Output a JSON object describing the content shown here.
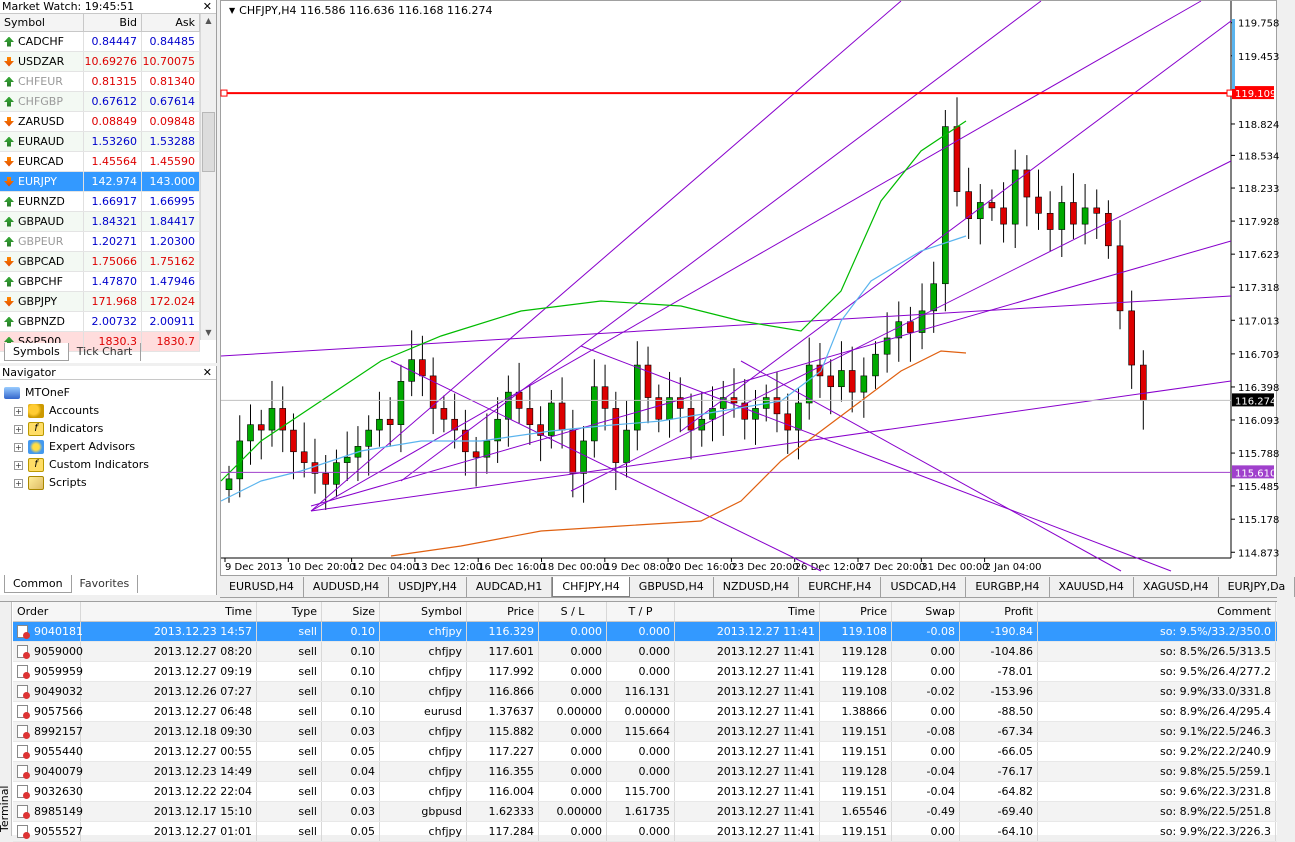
{
  "market_watch": {
    "title": "Market Watch: 19:45:51",
    "columns": [
      "Symbol",
      "Bid",
      "Ask"
    ],
    "rows": [
      {
        "symbol": "CADCHF",
        "bid": "0.84447",
        "ask": "0.84485",
        "dir": "up",
        "color": "#0000cc"
      },
      {
        "symbol": "USDZAR",
        "bid": "10.69276",
        "ask": "10.70075",
        "dir": "down",
        "color": "#dd0000"
      },
      {
        "symbol": "CHFEUR",
        "bid": "0.81315",
        "ask": "0.81340",
        "dir": "up",
        "color": "#dd0000",
        "grey": true
      },
      {
        "symbol": "CHFGBP",
        "bid": "0.67612",
        "ask": "0.67614",
        "dir": "up",
        "color": "#0000cc",
        "grey": true
      },
      {
        "symbol": "ZARUSD",
        "bid": "0.08849",
        "ask": "0.09848",
        "dir": "down",
        "color": "#dd0000"
      },
      {
        "symbol": "EURAUD",
        "bid": "1.53260",
        "ask": "1.53288",
        "dir": "up",
        "color": "#0000cc"
      },
      {
        "symbol": "EURCAD",
        "bid": "1.45564",
        "ask": "1.45590",
        "dir": "down",
        "color": "#dd0000"
      },
      {
        "symbol": "EURJPY",
        "bid": "142.974",
        "ask": "143.000",
        "dir": "down",
        "color": "#ffffff",
        "selected": true
      },
      {
        "symbol": "EURNZD",
        "bid": "1.66917",
        "ask": "1.66995",
        "dir": "up",
        "color": "#0000cc"
      },
      {
        "symbol": "GBPAUD",
        "bid": "1.84321",
        "ask": "1.84417",
        "dir": "up",
        "color": "#0000cc"
      },
      {
        "symbol": "GBPEUR",
        "bid": "1.20271",
        "ask": "1.20300",
        "dir": "up",
        "color": "#0000cc",
        "grey": true
      },
      {
        "symbol": "GBPCAD",
        "bid": "1.75066",
        "ask": "1.75162",
        "dir": "down",
        "color": "#dd0000"
      },
      {
        "symbol": "GBPCHF",
        "bid": "1.47870",
        "ask": "1.47946",
        "dir": "up",
        "color": "#0000cc"
      },
      {
        "symbol": "GBPJPY",
        "bid": "171.968",
        "ask": "172.024",
        "dir": "down",
        "color": "#dd0000"
      },
      {
        "symbol": "GBPNZD",
        "bid": "2.00732",
        "ask": "2.00911",
        "dir": "up",
        "color": "#0000cc"
      },
      {
        "symbol": "S&P500",
        "bid": "1830.3",
        "ask": "1830.7",
        "dir": "up",
        "color": "#dd0000"
      }
    ],
    "tabs": [
      "Symbols",
      "Tick Chart"
    ]
  },
  "navigator": {
    "title": "Navigator",
    "root": "MTOneF",
    "items": [
      "Accounts",
      "Indicators",
      "Expert Advisors",
      "Custom Indicators",
      "Scripts"
    ],
    "tabs": [
      "Common",
      "Favorites"
    ]
  },
  "chart": {
    "header": "CHFJPY,H4  116.586 116.636 116.168 116.274",
    "price_labels": [
      "119.758",
      "119.453",
      "118.824",
      "118.534",
      "118.233",
      "117.928",
      "117.623",
      "117.318",
      "117.013",
      "116.703",
      "116.398",
      "116.093",
      "115.788",
      "115.485",
      "115.178",
      "114.873"
    ],
    "hline_red": "119.109",
    "hline_current": "116.274",
    "hline_purple": "115.610",
    "time_labels": [
      "9 Dec 2013",
      "10 Dec 20:00",
      "12 Dec 04:00",
      "13 Dec 12:00",
      "16 Dec 16:00",
      "18 Dec 00:00",
      "19 Dec 08:00",
      "20 Dec 16:00",
      "23 Dec 20:00",
      "26 Dec 12:00",
      "27 Dec 20:00",
      "31 Dec 00:00",
      "2 Jan 04:00"
    ],
    "colors": {
      "bull": "#00aa00",
      "bear": "#dd0000",
      "trend": "#8800cc",
      "ma_green": "#00bb00",
      "ma_blue": "#5ab4ee",
      "ma_orange": "#e06010",
      "red_line": "#ff0000"
    }
  },
  "chart_tabs": [
    "EURUSD,H4",
    "AUDUSD,H4",
    "USDJPY,H4",
    "AUDCAD,H1",
    "CHFJPY,H4",
    "GBPUSD,H4",
    "NZDUSD,H4",
    "EURCHF,H4",
    "USDCAD,H4",
    "EURGBP,H4",
    "XAUUSD,H4",
    "XAGUSD,H4",
    "EURJPY,Da"
  ],
  "terminal": {
    "side_label": "Terminal",
    "columns": [
      "Order",
      "Time",
      "Type",
      "Size",
      "Symbol",
      "Price",
      "S / L",
      "T / P",
      "Time",
      "Price",
      "Swap",
      "Profit",
      "Comment"
    ],
    "rows": [
      [
        "9040181",
        "2013.12.23 14:57",
        "sell",
        "0.10",
        "chfjpy",
        "116.329",
        "0.000",
        "0.000",
        "2013.12.27 11:41",
        "119.108",
        "-0.08",
        "-190.84",
        "so: 9.5%/33.2/350.0"
      ],
      [
        "9059000",
        "2013.12.27 08:20",
        "sell",
        "0.10",
        "chfjpy",
        "117.601",
        "0.000",
        "0.000",
        "2013.12.27 11:41",
        "119.128",
        "0.00",
        "-104.86",
        "so: 8.5%/26.5/313.5"
      ],
      [
        "9059959",
        "2013.12.27 09:19",
        "sell",
        "0.10",
        "chfjpy",
        "117.992",
        "0.000",
        "0.000",
        "2013.12.27 11:41",
        "119.128",
        "0.00",
        "-78.01",
        "so: 9.5%/26.4/277.2"
      ],
      [
        "9049032",
        "2013.12.26 07:27",
        "sell",
        "0.10",
        "chfjpy",
        "116.866",
        "0.000",
        "116.131",
        "2013.12.27 11:41",
        "119.108",
        "-0.02",
        "-153.96",
        "so: 9.9%/33.0/331.8"
      ],
      [
        "9057566",
        "2013.12.27 06:48",
        "sell",
        "0.10",
        "eurusd",
        "1.37637",
        "0.00000",
        "0.00000",
        "2013.12.27 11:41",
        "1.38866",
        "0.00",
        "-88.50",
        "so: 8.9%/26.4/295.4"
      ],
      [
        "8992157",
        "2013.12.18 09:30",
        "sell",
        "0.03",
        "chfjpy",
        "115.882",
        "0.000",
        "115.664",
        "2013.12.27 11:41",
        "119.151",
        "-0.08",
        "-67.34",
        "so: 9.1%/22.5/246.3"
      ],
      [
        "9055440",
        "2013.12.27 00:55",
        "sell",
        "0.05",
        "chfjpy",
        "117.227",
        "0.000",
        "0.000",
        "2013.12.27 11:41",
        "119.151",
        "0.00",
        "-66.05",
        "so: 9.2%/22.2/240.9"
      ],
      [
        "9040079",
        "2013.12.23 14:49",
        "sell",
        "0.04",
        "chfjpy",
        "116.355",
        "0.000",
        "0.000",
        "2013.12.27 11:41",
        "119.128",
        "-0.04",
        "-76.17",
        "so: 9.8%/25.5/259.1"
      ],
      [
        "9032630",
        "2013.12.22 22:04",
        "sell",
        "0.03",
        "chfjpy",
        "116.004",
        "0.000",
        "115.700",
        "2013.12.27 11:41",
        "119.151",
        "-0.04",
        "-64.82",
        "so: 9.6%/22.3/231.8"
      ],
      [
        "8985149",
        "2013.12.17 15:10",
        "sell",
        "0.03",
        "gbpusd",
        "1.62333",
        "0.00000",
        "1.61735",
        "2013.12.27 11:41",
        "1.65546",
        "-0.49",
        "-69.40",
        "so: 8.9%/22.5/251.8"
      ],
      [
        "9055527",
        "2013.12.27 01:01",
        "sell",
        "0.05",
        "chfjpy",
        "117.284",
        "0.000",
        "0.000",
        "2013.12.27 11:41",
        "119.151",
        "0.00",
        "-64.10",
        "so: 9.9%/22.3/226.3"
      ]
    ]
  }
}
